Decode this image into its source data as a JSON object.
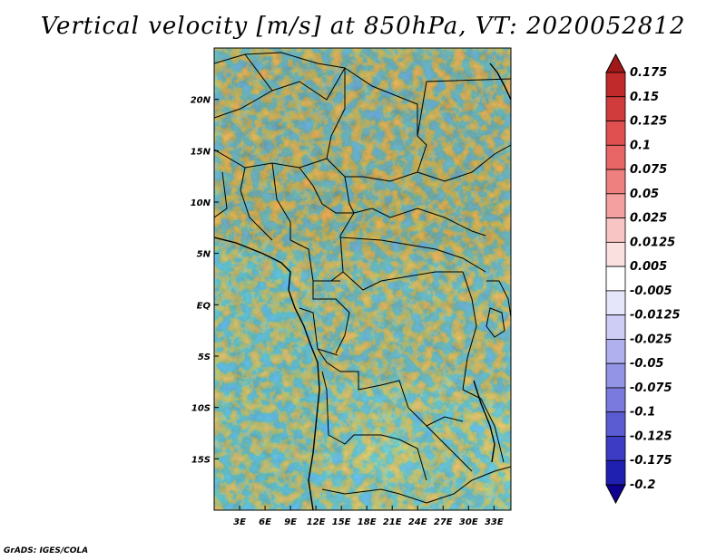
{
  "title": "Vertical velocity [m/s] at 850hPa, VT: 2020052812",
  "footer": "GrADS: IGES/COLA",
  "map": {
    "lon_range": [
      0,
      35
    ],
    "lat_range": [
      -20,
      25
    ],
    "lon_ticks": [
      "3E",
      "6E",
      "9E",
      "12E",
      "15E",
      "18E",
      "21E",
      "24E",
      "27E",
      "30E",
      "33E"
    ],
    "lat_ticks": [
      "20N",
      "15N",
      "10N",
      "5N",
      "EQ",
      "5S",
      "10S",
      "15S"
    ],
    "lon_tick_values": [
      3,
      6,
      9,
      12,
      15,
      18,
      21,
      24,
      27,
      30,
      33
    ],
    "lat_tick_values": [
      20,
      15,
      10,
      5,
      0,
      -5,
      -10,
      -15
    ]
  },
  "colorbar": {
    "labels": [
      "0.175",
      "0.15",
      "0.125",
      "0.1",
      "0.075",
      "0.05",
      "0.025",
      "0.0125",
      "0.005",
      "-0.005",
      "-0.0125",
      "-0.025",
      "-0.05",
      "-0.075",
      "-0.1",
      "-0.125",
      "-0.175",
      "-0.2"
    ],
    "colors": [
      "#a01818",
      "#c02a2a",
      "#d03c3c",
      "#e05050",
      "#e86666",
      "#ee8080",
      "#f4a0a0",
      "#f8c4c4",
      "#fbe0e0",
      "#ffffff",
      "#e6e6fa",
      "#cdcdf5",
      "#b0b0ee",
      "#9494e6",
      "#7a7ade",
      "#5c5cd2",
      "#3c3cc4",
      "#2020b0",
      "#100090"
    ]
  }
}
